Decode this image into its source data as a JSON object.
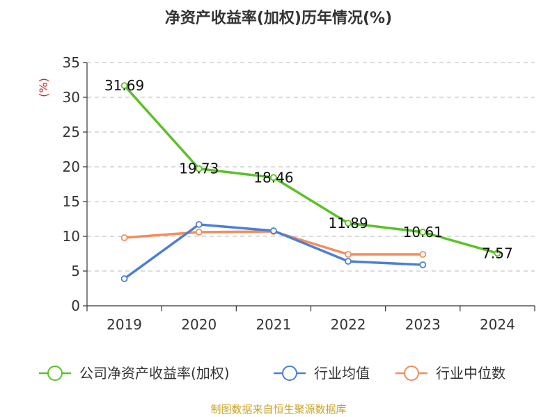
{
  "chart_data": {
    "type": "line",
    "title": "净资产收益率(加权)历年情况(%)",
    "ylabel": "(%)",
    "xlabel": "",
    "categories": [
      "2019",
      "2020",
      "2021",
      "2022",
      "2023",
      "2024"
    ],
    "ylim": [
      0,
      35
    ],
    "yticks": [
      0,
      5,
      10,
      15,
      20,
      25,
      30,
      35
    ],
    "grid": "horizontal-dashed",
    "legend_position": "bottom",
    "series": [
      {
        "name": "公司净资产收益率(加权)",
        "color": "#5ac225",
        "values": [
          31.69,
          19.73,
          18.46,
          11.89,
          10.61,
          7.57
        ],
        "show_labels": true
      },
      {
        "name": "行业均值",
        "color": "#4a7fd6",
        "values": [
          3.9,
          11.7,
          10.8,
          6.4,
          5.9,
          null
        ],
        "show_labels": false
      },
      {
        "name": "行业中位数",
        "color": "#f58c5a",
        "values": [
          9.8,
          10.6,
          10.7,
          7.4,
          7.4,
          null
        ],
        "show_labels": false
      }
    ],
    "source": "制图数据来自恒生聚源数据库"
  }
}
